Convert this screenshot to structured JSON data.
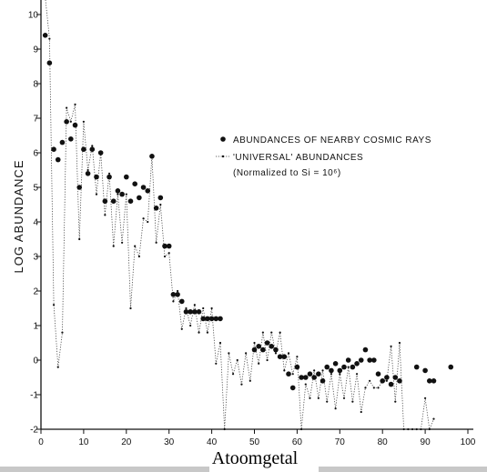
{
  "chart_data": {
    "type": "scatter",
    "xlabel": "Atoomgetal",
    "ylabel": "LOG ABUNDANCE",
    "xlim": [
      0,
      100
    ],
    "ylim": [
      -2,
      10
    ],
    "xticks": [
      0,
      10,
      20,
      30,
      40,
      50,
      60,
      70,
      80,
      90,
      100
    ],
    "yticks": [
      -2,
      -1,
      0,
      1,
      2,
      3,
      4,
      5,
      6,
      7,
      8,
      9,
      10
    ],
    "legend": [
      "ABUNDANCES OF NEARBY COSMIC RAYS",
      "'UNIVERSAL' ABUNDANCES",
      "(Normalized to Si = 10⁶)"
    ],
    "series": [
      {
        "name": "ABUNDANCES OF NEARBY COSMIC RAYS",
        "marker": "filled-circle",
        "x": [
          1,
          2,
          3,
          4,
          5,
          6,
          7,
          8,
          9,
          10,
          11,
          12,
          13,
          14,
          15,
          16,
          17,
          18,
          19,
          20,
          21,
          22,
          23,
          24,
          25,
          26,
          27,
          28,
          29,
          30,
          31,
          32,
          33,
          34,
          35,
          36,
          37,
          38,
          39,
          40,
          41,
          42,
          50,
          51,
          52,
          53,
          54,
          55,
          56,
          57,
          58,
          59,
          60,
          61,
          62,
          63,
          64,
          65,
          66,
          67,
          68,
          69,
          70,
          71,
          72,
          73,
          74,
          75,
          76,
          77,
          78,
          79,
          80,
          81,
          82,
          83,
          84,
          88,
          90,
          91,
          92,
          96
        ],
        "y": [
          9.4,
          8.6,
          6.1,
          5.8,
          6.3,
          6.9,
          6.4,
          6.8,
          5.0,
          6.1,
          5.4,
          6.1,
          5.3,
          6.0,
          4.6,
          5.3,
          4.6,
          4.9,
          4.8,
          5.3,
          4.6,
          5.1,
          4.7,
          5.0,
          4.9,
          5.9,
          4.4,
          4.7,
          3.3,
          3.3,
          1.9,
          1.9,
          1.7,
          1.4,
          1.4,
          1.4,
          1.4,
          1.2,
          1.2,
          1.2,
          1.2,
          1.2,
          0.3,
          0.4,
          0.3,
          0.5,
          0.4,
          0.3,
          0.1,
          0.1,
          -0.4,
          -0.8,
          -0.2,
          -0.5,
          -0.5,
          -0.4,
          -0.5,
          -0.4,
          -0.6,
          -0.2,
          -0.3,
          -0.1,
          -0.3,
          -0.2,
          0.0,
          -0.2,
          -0.1,
          0.0,
          0.3,
          0.0,
          0.0,
          -0.4,
          -0.6,
          -0.5,
          -0.7,
          -0.5,
          -0.6,
          -0.2,
          -0.3,
          -0.6,
          -0.6,
          -0.2
        ]
      },
      {
        "name": "'UNIVERSAL' ABUNDANCES",
        "marker": "small-dot-dotted-line",
        "x": [
          1,
          2,
          3,
          4,
          5,
          6,
          7,
          8,
          9,
          10,
          11,
          12,
          13,
          14,
          15,
          16,
          17,
          18,
          19,
          20,
          21,
          22,
          23,
          24,
          25,
          26,
          27,
          28,
          29,
          30,
          31,
          32,
          33,
          34,
          35,
          36,
          37,
          38,
          39,
          40,
          41,
          42,
          43,
          44,
          45,
          46,
          47,
          48,
          49,
          50,
          51,
          52,
          53,
          54,
          55,
          56,
          57,
          58,
          59,
          60,
          61,
          62,
          63,
          64,
          65,
          66,
          67,
          68,
          69,
          70,
          71,
          72,
          73,
          74,
          75,
          76,
          77,
          78,
          79,
          80,
          81,
          82,
          83,
          84,
          85,
          86,
          87,
          88,
          89,
          90,
          91,
          92
        ],
        "y": [
          10.5,
          9.3,
          1.6,
          -0.2,
          0.8,
          7.3,
          6.9,
          7.4,
          3.5,
          6.9,
          5.5,
          6.2,
          4.8,
          6.0,
          4.2,
          5.4,
          3.3,
          4.8,
          3.4,
          4.8,
          1.5,
          3.3,
          3.0,
          4.1,
          4.0,
          5.9,
          3.4,
          4.5,
          3.0,
          3.1,
          1.7,
          2.0,
          0.9,
          1.5,
          1.0,
          1.6,
          0.8,
          1.5,
          0.8,
          1.5,
          -0.1,
          0.5,
          -2.0,
          0.2,
          -0.4,
          0.0,
          -0.7,
          0.2,
          -0.6,
          0.5,
          -0.1,
          0.8,
          0.0,
          0.8,
          0.2,
          0.8,
          -0.3,
          0.2,
          -0.4,
          0.1,
          -2.0,
          -0.7,
          -1.1,
          -0.3,
          -1.1,
          -0.3,
          -1.2,
          -0.4,
          -1.4,
          -0.4,
          -1.1,
          -0.2,
          -1.2,
          -0.4,
          -1.5,
          -0.8,
          -0.6,
          -0.8,
          -0.8,
          -0.6,
          -0.6,
          0.4,
          -1.2,
          0.5,
          -2.0,
          -2.0,
          -2.0,
          -2.0,
          -2.0,
          -1.1,
          -2.0,
          -1.7
        ]
      }
    ]
  }
}
